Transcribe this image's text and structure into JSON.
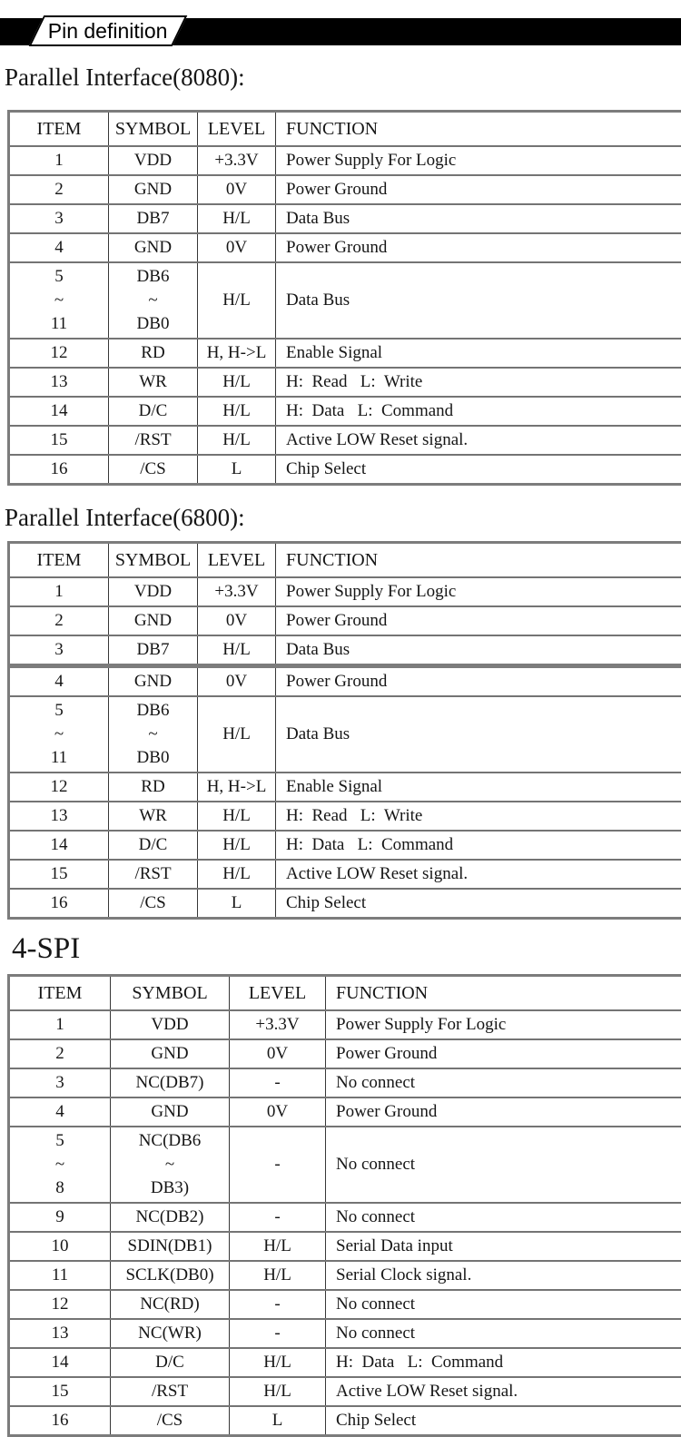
{
  "banner": {
    "label": "Pin definition"
  },
  "colors": {
    "banner_bg": "#000000",
    "banner_tab_bg": "#ffffff",
    "text": "#161616",
    "table_border_gray": "#7c7c7c",
    "table_grid": "#383838"
  },
  "sections": [
    {
      "title": "Parallel Interface(8080):",
      "headers": [
        "ITEM",
        "SYMBOL",
        "LEVEL",
        "FUNCTION"
      ],
      "rows": [
        {
          "item": "1",
          "symbol": "VDD",
          "level": "+3.3V",
          "function": "Power Supply For Logic"
        },
        {
          "item": "2",
          "symbol": "GND",
          "level": "0V",
          "function": "Power Ground"
        },
        {
          "item": "3",
          "symbol": "DB7",
          "level": "H/L",
          "function": "Data Bus"
        },
        {
          "item": "4",
          "symbol": "GND",
          "level": "0V",
          "function": "Power Ground"
        },
        {
          "item": "5\n~\n11",
          "symbol": "DB6\n~\nDB0",
          "level": "H/L",
          "function": "Data Bus"
        },
        {
          "item": "12",
          "symbol": "RD",
          "level": "H, H->L",
          "function": "Enable Signal"
        },
        {
          "item": "13",
          "symbol": "WR",
          "level": "H/L",
          "function": "H:  Read   L:  Write"
        },
        {
          "item": "14",
          "symbol": "D/C",
          "level": "H/L",
          "function": "H:  Data   L:  Command"
        },
        {
          "item": "15",
          "symbol": "/RST",
          "level": "H/L",
          "function": "Active LOW Reset signal."
        },
        {
          "item": "16",
          "symbol": "/CS",
          "level": "L",
          "function": "Chip Select"
        }
      ]
    },
    {
      "title": "Parallel Interface(6800):",
      "headers": [
        "ITEM",
        "SYMBOL",
        "LEVEL",
        "FUNCTION"
      ],
      "rows": [
        {
          "item": "1",
          "symbol": "VDD",
          "level": "+3.3V",
          "function": "Power Supply For Logic"
        },
        {
          "item": "2",
          "symbol": "GND",
          "level": "0V",
          "function": "Power Ground"
        },
        {
          "item": "3",
          "symbol": "DB7",
          "level": "H/L",
          "function": "Data Bus"
        },
        {
          "item": "4",
          "symbol": "GND",
          "level": "0V",
          "function": "Power Ground",
          "break_before": true
        },
        {
          "item": "5\n~\n11",
          "symbol": "DB6\n~\nDB0",
          "level": "H/L",
          "function": "Data Bus"
        },
        {
          "item": "12",
          "symbol": "RD",
          "level": "H, H->L",
          "function": "Enable Signal"
        },
        {
          "item": "13",
          "symbol": "WR",
          "level": "H/L",
          "function": "H:  Read   L:  Write"
        },
        {
          "item": "14",
          "symbol": "D/C",
          "level": "H/L",
          "function": "H:  Data   L:  Command"
        },
        {
          "item": "15",
          "symbol": "/RST",
          "level": "H/L",
          "function": "Active LOW Reset signal."
        },
        {
          "item": "16",
          "symbol": "/CS",
          "level": "L",
          "function": "Chip Select"
        }
      ]
    },
    {
      "title": "4-SPI",
      "headers": [
        "ITEM",
        "SYMBOL",
        "LEVEL",
        "FUNCTION"
      ],
      "rows": [
        {
          "item": "1",
          "symbol": "VDD",
          "level": "+3.3V",
          "function": "Power Supply For Logic"
        },
        {
          "item": "2",
          "symbol": "GND",
          "level": "0V",
          "function": "Power Ground"
        },
        {
          "item": "3",
          "symbol": "NC(DB7)",
          "level": "-",
          "function": "No connect"
        },
        {
          "item": "4",
          "symbol": "GND",
          "level": "0V",
          "function": "Power Ground"
        },
        {
          "item": "5\n~\n8",
          "symbol": "NC(DB6\n~\nDB3)",
          "level": "-",
          "function": "No connect"
        },
        {
          "item": "9",
          "symbol": "NC(DB2)",
          "level": "-",
          "function": "No connect"
        },
        {
          "item": "10",
          "symbol": "SDIN(DB1)",
          "level": "H/L",
          "function": "Serial Data input"
        },
        {
          "item": "11",
          "symbol": "SCLK(DB0)",
          "level": "H/L",
          "function": "Serial Clock signal."
        },
        {
          "item": "12",
          "symbol": "NC(RD)",
          "level": "-",
          "function": "No connect"
        },
        {
          "item": "13",
          "symbol": "NC(WR)",
          "level": "-",
          "function": "No connect"
        },
        {
          "item": "14",
          "symbol": "D/C",
          "level": "H/L",
          "function": "H:  Data   L:  Command"
        },
        {
          "item": "15",
          "symbol": "/RST",
          "level": "H/L",
          "function": "Active LOW Reset signal."
        },
        {
          "item": "16",
          "symbol": "/CS",
          "level": "L",
          "function": "Chip Select"
        }
      ]
    }
  ]
}
